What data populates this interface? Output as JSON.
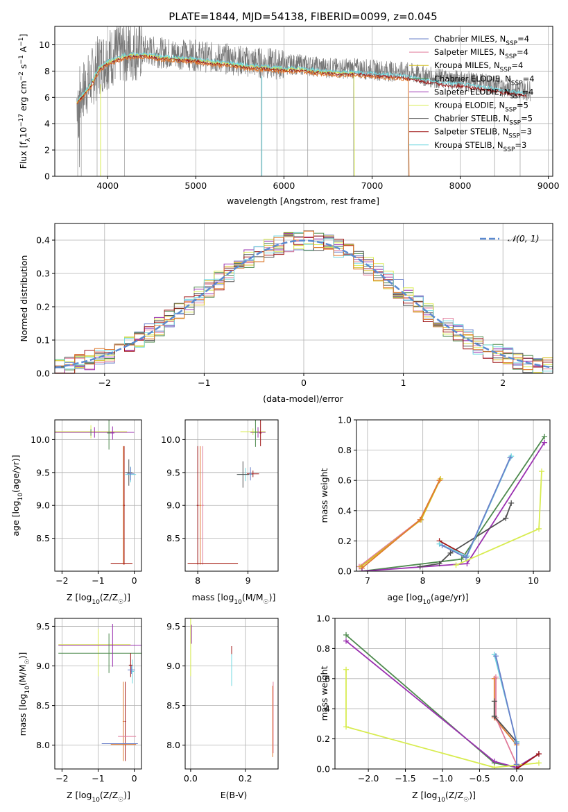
{
  "title": "PLATE=1844, MJD=54138, FIBERID=0099, z=0.045",
  "colors": {
    "Chabrier MILES": "#6a7fc9",
    "Salpeter MILES": "#e07a9a",
    "Kroupa MILES": "#d4c020",
    "Chabrier ELODIE": "#4e8a4e",
    "Salpeter ELODIE": "#9a30b0",
    "Kroupa ELODIE": "#d8ec50",
    "Chabrier STELIB": "#505050",
    "Salpeter STELIB": "#a01818",
    "Kroupa STELIB": "#70d8e0",
    "orange": "#e07a30",
    "gaussian": "#5b8ad0"
  },
  "legend": {
    "spectrum": [
      {
        "pre": "Chabrier MILES, N",
        "sub": "SSP",
        "post": "=4",
        "key": "Chabrier MILES"
      },
      {
        "pre": "Salpeter MILES, N",
        "sub": "SSP",
        "post": "=4",
        "key": "Salpeter MILES"
      },
      {
        "pre": "Kroupa MILES, N",
        "sub": "SSP",
        "post": "=4",
        "key": "Kroupa MILES"
      },
      {
        "pre": "Chabrier ELODIE, N",
        "sub": "SSP",
        "post": "=4",
        "key": "Chabrier ELODIE"
      },
      {
        "pre": "Salpeter ELODIE, N",
        "sub": "SSP",
        "post": "=4",
        "key": "Salpeter ELODIE"
      },
      {
        "pre": "Kroupa ELODIE, N",
        "sub": "SSP",
        "post": "=5",
        "key": "Kroupa ELODIE"
      },
      {
        "pre": "Chabrier STELIB, N",
        "sub": "SSP",
        "post": "=5",
        "key": "Chabrier STELIB"
      },
      {
        "pre": "Salpeter STELIB, N",
        "sub": "SSP",
        "post": "=3",
        "key": "Salpeter STELIB"
      },
      {
        "pre": "Kroupa STELIB, N",
        "sub": "SSP",
        "post": "=3",
        "key": "Kroupa STELIB"
      }
    ],
    "hist": "𝒩(0, 1)"
  },
  "chart_data": [
    {
      "type": "line",
      "id": "spectrum",
      "xlabel": "wavelength [Angstrom, rest frame]",
      "ylabel_parts": [
        "Flux [f",
        "λ",
        "10",
        "−17",
        " erg cm",
        "−2",
        " s",
        "−1",
        " A",
        "−1",
        "]"
      ],
      "xlim": [
        3400,
        9050
      ],
      "ylim": [
        0,
        11.4
      ],
      "xticks": [
        4000,
        5000,
        6000,
        7000,
        8000,
        9000
      ],
      "yticks": [
        0,
        2,
        4,
        6,
        8,
        10
      ],
      "data_envelope": {
        "x": [
          3650,
          3800,
          3900,
          4000,
          4200,
          4400,
          4600,
          4800,
          5000,
          5200,
          5400,
          5600,
          5800,
          6000,
          6200,
          6400,
          6600,
          6800,
          7000,
          7200,
          7400,
          7600,
          7800,
          8000,
          8200,
          8400,
          8600,
          8800
        ],
        "y": [
          6.0,
          7.2,
          8.5,
          9.0,
          9.5,
          9.6,
          9.4,
          9.3,
          9.2,
          9.0,
          8.9,
          8.7,
          8.6,
          8.5,
          8.5,
          8.3,
          8.2,
          8.2,
          8.1,
          8.0,
          7.9,
          7.6,
          7.4,
          7.3,
          7.1,
          6.9,
          6.7,
          6.5
        ]
      }
    },
    {
      "type": "bar",
      "id": "residual_histogram",
      "xlabel": "(data-model)/error",
      "ylabel": "Normed distribution",
      "xlim": [
        -2.5,
        2.5
      ],
      "ylim": [
        0,
        0.45
      ],
      "xticks": [
        -2,
        -1,
        0,
        1,
        2
      ],
      "yticks": [
        0.0,
        0.1,
        0.2,
        0.3,
        0.4
      ],
      "bin_width": 0.1,
      "gaussian": "N(0,1)"
    },
    {
      "type": "scatter",
      "id": "age_vs_Z",
      "xlabel": "Z [log10(Z/Z☉)]",
      "ylabel": "age [log10(age/yr)]",
      "xlim": [
        -2.2,
        0.2
      ],
      "ylim": [
        8.0,
        10.3
      ],
      "xticks": [
        -2,
        -1,
        0
      ],
      "yticks": [
        8.5,
        9.0,
        9.5,
        10.0
      ]
    },
    {
      "type": "scatter",
      "id": "age_vs_mass",
      "xlabel": "mass [log10(M/M☉)]",
      "ylabel": "",
      "xlim": [
        7.75,
        9.6
      ],
      "ylim": [
        8.0,
        10.3
      ],
      "xticks": [
        8,
        9
      ],
      "yticks": [
        8.5,
        9.0,
        9.5,
        10.0
      ]
    },
    {
      "type": "line",
      "id": "massweight_vs_age",
      "xlabel": "age [log10(age/yr)]",
      "ylabel": "mass weight",
      "xlim": [
        6.8,
        10.3
      ],
      "ylim": [
        0,
        1.0
      ],
      "xticks": [
        7,
        8,
        9,
        10
      ],
      "yticks": [
        0.0,
        0.2,
        0.4,
        0.6,
        0.8,
        1.0
      ],
      "series": [
        {
          "name": "Salpeter MILES",
          "x": [
            6.85,
            7.95,
            8.3
          ],
          "y": [
            0.03,
            0.34,
            0.6
          ]
        },
        {
          "name": "Kroupa MILES",
          "x": [
            6.88,
            7.97,
            8.32
          ],
          "y": [
            0.03,
            0.34,
            0.61
          ]
        },
        {
          "name": "orange",
          "x": [
            6.9,
            7.95,
            8.3
          ],
          "y": [
            0.02,
            0.34,
            0.6
          ]
        },
        {
          "name": "Chabrier ELODIE",
          "x": [
            6.9,
            8.7,
            10.2
          ],
          "y": [
            0.0,
            0.08,
            0.89
          ]
        },
        {
          "name": "Salpeter ELODIE",
          "x": [
            6.9,
            8.8,
            10.2
          ],
          "y": [
            0.0,
            0.05,
            0.85
          ]
        },
        {
          "name": "Kroupa ELODIE",
          "x": [
            8.6,
            10.1,
            10.15
          ],
          "y": [
            0.04,
            0.28,
            0.66
          ]
        },
        {
          "name": "Chabrier STELIB",
          "x": [
            7.95,
            8.3,
            8.5,
            9.5,
            9.6
          ],
          "y": [
            0.03,
            0.05,
            0.12,
            0.35,
            0.45
          ]
        },
        {
          "name": "Salpeter STELIB",
          "x": [
            8.3,
            8.8
          ],
          "y": [
            0.2,
            0.1
          ]
        },
        {
          "name": "Kroupa STELIB",
          "x": [
            8.3,
            8.8,
            9.6
          ],
          "y": [
            0.18,
            0.1,
            0.76
          ]
        },
        {
          "name": "Chabrier MILES",
          "x": [
            8.35,
            8.78,
            9.58
          ],
          "y": [
            0.17,
            0.09,
            0.75
          ]
        }
      ]
    },
    {
      "type": "scatter",
      "id": "mass_vs_Z",
      "xlabel": "Z [log10(Z/Z☉)]",
      "ylabel": "mass [log10(M/M☉)]",
      "xlim": [
        -2.2,
        0.2
      ],
      "ylim": [
        7.7,
        9.6
      ],
      "xticks": [
        -2,
        -1,
        0
      ],
      "yticks": [
        8.0,
        8.5,
        9.0,
        9.5
      ]
    },
    {
      "type": "scatter",
      "id": "mass_vs_EBV",
      "xlabel": "E(B-V)",
      "ylabel": "",
      "xlim": [
        -0.02,
        0.32
      ],
      "ylim": [
        7.7,
        9.6
      ],
      "xticks": [
        0.0,
        0.2
      ],
      "yticks": [
        8.0,
        8.5,
        9.0,
        9.5
      ]
    },
    {
      "type": "line",
      "id": "massweight_vs_Z",
      "xlabel": "Z [log10(Z/Z☉)]",
      "ylabel": "mass weight",
      "xlim": [
        -2.45,
        0.45
      ],
      "ylim": [
        0,
        1.0
      ],
      "xticks": [
        -2.0,
        -1.5,
        -1.0,
        -0.5,
        0.0
      ],
      "yticks": [
        0.0,
        0.2,
        0.4,
        0.6,
        0.8,
        1.0
      ],
      "series": [
        {
          "name": "Chabrier ELODIE",
          "x": [
            -2.3,
            -0.3,
            0.0,
            0.3
          ],
          "y": [
            0.89,
            0.04,
            0.01,
            0.1
          ]
        },
        {
          "name": "Salpeter ELODIE",
          "x": [
            -2.3,
            -0.3,
            0.0,
            0.3
          ],
          "y": [
            0.85,
            0.05,
            0.01,
            0.1
          ]
        },
        {
          "name": "Kroupa ELODIE",
          "x": [
            -2.3,
            -2.3,
            -0.3,
            0.3
          ],
          "y": [
            0.66,
            0.28,
            0.01,
            0.04
          ]
        },
        {
          "name": "orange",
          "x": [
            -0.3,
            -0.3,
            -0.0,
            0.0
          ],
          "y": [
            0.6,
            0.34,
            0.16,
            0.03
          ]
        },
        {
          "name": "Salpeter MILES",
          "x": [
            -0.28,
            -0.28,
            0.0
          ],
          "y": [
            0.61,
            0.34,
            0.03
          ]
        },
        {
          "name": "Chabrier STELIB",
          "x": [
            -0.3,
            -0.3,
            0.0,
            0.0
          ],
          "y": [
            0.45,
            0.35,
            0.18,
            0.03
          ]
        },
        {
          "name": "Kroupa STELIB",
          "x": [
            -0.3,
            0.0,
            0.0
          ],
          "y": [
            0.76,
            0.18,
            0.03
          ]
        },
        {
          "name": "Chabrier MILES",
          "x": [
            -0.28,
            0.0,
            0.0
          ],
          "y": [
            0.75,
            0.17,
            0.03
          ]
        },
        {
          "name": "Salpeter STELIB",
          "x": [
            0.0,
            0.3
          ],
          "y": [
            0.0,
            0.1
          ]
        }
      ]
    }
  ]
}
